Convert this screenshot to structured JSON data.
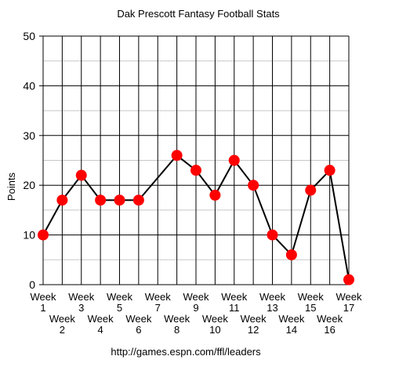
{
  "chart_data": {
    "type": "line",
    "title": "Dak Prescott Fantasy Football Stats",
    "xlabel": "",
    "ylabel": "Points",
    "source": "http://games.espn.com/ffl/leaders",
    "ylim": [
      0,
      50
    ],
    "yticks": [
      0,
      10,
      20,
      30,
      40,
      50
    ],
    "grid": true,
    "categories": [
      {
        "top": "Week",
        "bottom": "1"
      },
      {
        "top": "Week",
        "bottom": "2"
      },
      {
        "top": "Week",
        "bottom": "3"
      },
      {
        "top": "Week",
        "bottom": "4"
      },
      {
        "top": "Week",
        "bottom": "5"
      },
      {
        "top": "Week",
        "bottom": "6"
      },
      {
        "top": "Week",
        "bottom": "7"
      },
      {
        "top": "Week",
        "bottom": "8"
      },
      {
        "top": "Week",
        "bottom": "9"
      },
      {
        "top": "Week",
        "bottom": "10"
      },
      {
        "top": "Week",
        "bottom": "11"
      },
      {
        "top": "Week",
        "bottom": "12"
      },
      {
        "top": "Week",
        "bottom": "13"
      },
      {
        "top": "Week",
        "bottom": "14"
      },
      {
        "top": "Week",
        "bottom": "15"
      },
      {
        "top": "Week",
        "bottom": "16"
      },
      {
        "top": "Week",
        "bottom": "17"
      }
    ],
    "points": [
      {
        "week": 1,
        "value": 10
      },
      {
        "week": 2,
        "value": 17
      },
      {
        "week": 3,
        "value": 22
      },
      {
        "week": 4,
        "value": 17
      },
      {
        "week": 5,
        "value": 17
      },
      {
        "week": 6,
        "value": 17
      },
      {
        "week": 8,
        "value": 26
      },
      {
        "week": 9,
        "value": 23
      },
      {
        "week": 10,
        "value": 18
      },
      {
        "week": 11,
        "value": 25
      },
      {
        "week": 12,
        "value": 20
      },
      {
        "week": 13,
        "value": 10
      },
      {
        "week": 14,
        "value": 6
      },
      {
        "week": 15,
        "value": 19
      },
      {
        "week": 16,
        "value": 23
      },
      {
        "week": 17,
        "value": 1
      }
    ],
    "colors": {
      "marker": "#ff0000",
      "line": "#000000",
      "major_grid": "#000000",
      "minor_grid": "#c8c8c8"
    }
  }
}
